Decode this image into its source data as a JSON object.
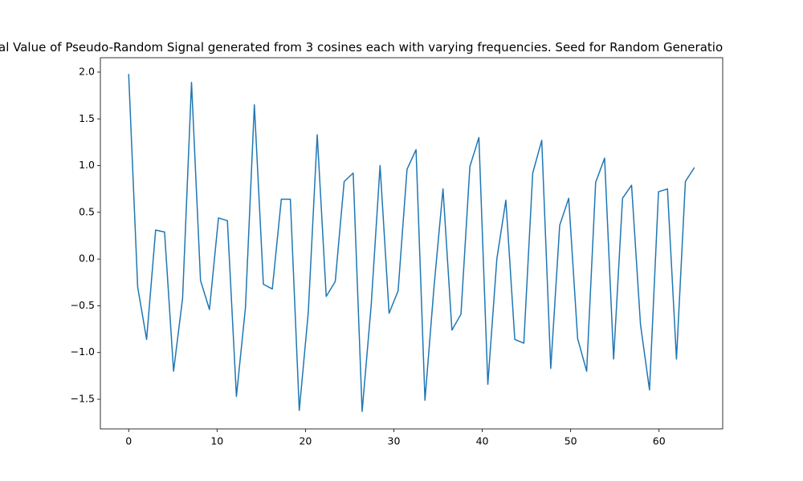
{
  "chart_data": {
    "type": "line",
    "title": "al Value of Pseudo-Random Signal generated from 3 cosines each with varying frequencies. Seed for Random Generatio",
    "x": [
      0,
      1.02,
      2.03,
      3.05,
      4.06,
      5.08,
      6.1,
      7.11,
      8.13,
      9.14,
      10.16,
      11.17,
      12.19,
      13.21,
      14.22,
      15.24,
      16.25,
      17.27,
      18.29,
      19.3,
      20.32,
      21.33,
      22.35,
      23.37,
      24.38,
      25.4,
      26.41,
      27.43,
      28.44,
      29.46,
      30.48,
      31.49,
      32.51,
      33.52,
      34.54,
      35.56,
      36.57,
      37.59,
      38.6,
      39.62,
      40.63,
      41.65,
      42.67,
      43.68,
      44.7,
      45.71,
      46.73,
      47.75,
      48.76,
      49.78,
      50.79,
      51.81,
      52.83,
      53.84,
      54.86,
      55.87,
      56.89,
      57.9,
      58.92,
      59.94,
      60.95,
      61.97,
      62.98,
      64
    ],
    "series": [
      {
        "color": "#1f77b4",
        "values": [
          1.98,
          -0.3,
          -0.86,
          0.31,
          0.29,
          -1.2,
          -0.42,
          1.89,
          -0.23,
          -0.54,
          0.44,
          0.41,
          -1.47,
          -0.52,
          1.65,
          -0.27,
          -0.32,
          0.64,
          0.64,
          -1.62,
          -0.57,
          1.33,
          -0.4,
          -0.24,
          0.83,
          0.92,
          -1.63,
          -0.5,
          1.0,
          -0.58,
          -0.34,
          0.96,
          1.17,
          -1.51,
          -0.3,
          0.75,
          -0.76,
          -0.59,
          0.99,
          1.3,
          -1.34,
          0.0,
          0.63,
          -0.86,
          -0.9,
          0.92,
          1.27,
          -1.17,
          0.36,
          0.65,
          -0.85,
          -1.2,
          0.82,
          1.08,
          -1.07,
          0.65,
          0.79,
          -0.7,
          -1.4,
          0.72,
          0.75,
          -1.07,
          0.83,
          0.98
        ]
      }
    ],
    "xlim": [
      -3.2,
      67.2
    ],
    "xticks": [
      0,
      10,
      20,
      30,
      40,
      50,
      60
    ],
    "ylim": [
      -1.817,
      2.154
    ],
    "yticks": [
      {
        "value": -1.5,
        "label": "−1.5"
      },
      {
        "value": -1,
        "label": "−1.0"
      },
      {
        "value": -0.5,
        "label": "−0.5"
      },
      {
        "value": 0,
        "label": "0.0"
      },
      0.5,
      {
        "value": 1,
        "label": "1.0"
      },
      1.5,
      {
        "value": 2,
        "label": "2.0"
      }
    ]
  }
}
